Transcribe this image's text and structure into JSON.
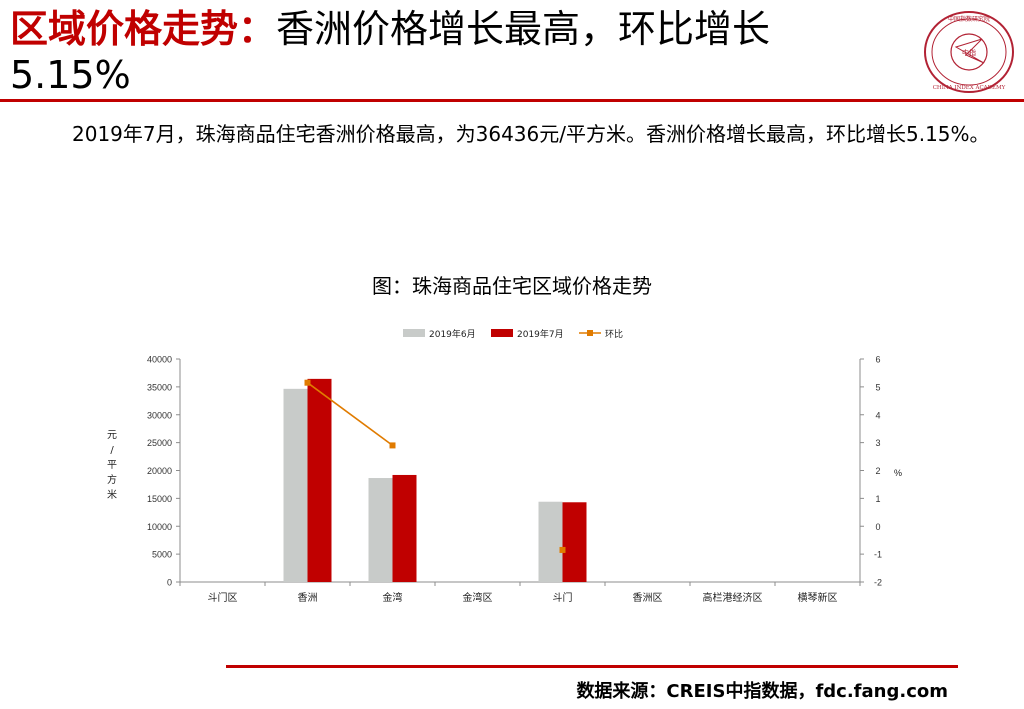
{
  "header": {
    "title_red": "区域价格走势：",
    "title_black": "香洲价格增长最高，环比增长",
    "title_line2": "5.15%"
  },
  "logo": {
    "text": "CHINA INDEX ACADEMY",
    "center_text": "中指",
    "top_text": "中国指数研究院",
    "color": "#b22234"
  },
  "body": {
    "paragraph": "2019年7月，珠海商品住宅香洲价格最高，为36436元/平方米。香洲价格增长最高，环比增长5.15%。"
  },
  "chart_title": "图：珠海商品住宅区域价格走势",
  "chart_data": {
    "type": "bar",
    "categories": [
      "斗门区",
      "香洲",
      "金湾",
      "金湾区",
      "斗门",
      "香洲区",
      "高栏港经济区",
      "横琴新区"
    ],
    "series": [
      {
        "name": "2019年6月",
        "type": "bar",
        "axis": "left",
        "color": "#c8cbc9",
        "values": [
          null,
          34650,
          18650,
          null,
          14400,
          null,
          null,
          null
        ]
      },
      {
        "name": "2019年7月",
        "type": "bar",
        "axis": "left",
        "color": "#c00000",
        "values": [
          null,
          36436,
          19200,
          null,
          14300,
          null,
          null,
          null
        ]
      },
      {
        "name": "环比",
        "type": "line",
        "axis": "right",
        "color": "#e07b00",
        "values": [
          null,
          5.15,
          2.9,
          null,
          -0.85,
          null,
          null,
          null
        ]
      }
    ],
    "ylabel": "元/平方米",
    "ylabel2": "%",
    "ylim": [
      0,
      40000
    ],
    "yticks": [
      0,
      5000,
      10000,
      15000,
      20000,
      25000,
      30000,
      35000,
      40000
    ],
    "ylim2": [
      -2,
      6
    ],
    "yticks2": [
      -2,
      -1,
      0,
      1,
      2,
      3,
      4,
      5,
      6
    ],
    "legend_position": "top",
    "grid": false
  },
  "footer": {
    "source": "数据来源：CREIS中指数据，fdc.fang.com"
  }
}
